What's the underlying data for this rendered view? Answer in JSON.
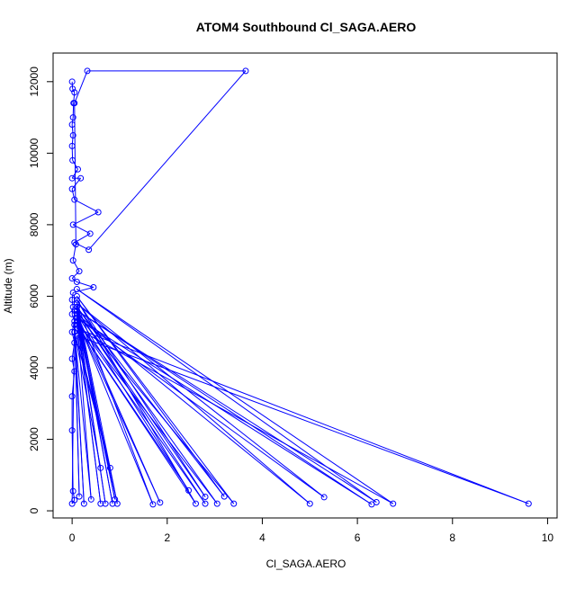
{
  "chart_data": {
    "type": "line",
    "title": "ATOM4 Southbound Cl_SAGA.AERO",
    "xlabel": "Cl_SAGA.AERO",
    "ylabel": "Altitude (m)",
    "xlim": [
      -0.4,
      10.2
    ],
    "ylim": [
      -200,
      12800
    ],
    "x_ticks": [
      0,
      2,
      4,
      6,
      8,
      10
    ],
    "y_ticks": [
      0,
      2000,
      4000,
      6000,
      8000,
      10000,
      12000
    ],
    "grid": false,
    "line_color": "#0000ff",
    "marker": "open-circle",
    "series": [
      {
        "points": [
          [
            0.0,
            12000
          ],
          [
            0.01,
            11800
          ],
          [
            0.05,
            11700
          ],
          [
            0.03,
            11400
          ],
          [
            0.02,
            11000
          ],
          [
            0.0,
            10800
          ],
          [
            0.02,
            10500
          ],
          [
            0.0,
            10200
          ],
          [
            0.01,
            9800
          ],
          [
            0.12,
            9550
          ],
          [
            0.0,
            9300
          ],
          [
            0.18,
            9300
          ],
          [
            0.0,
            9000
          ],
          [
            0.05,
            8700
          ],
          [
            0.55,
            8350
          ],
          [
            0.02,
            8000
          ],
          [
            0.38,
            7750
          ],
          [
            0.05,
            7500
          ],
          [
            0.35,
            7300
          ],
          [
            3.65,
            12300
          ],
          [
            0.32,
            12300
          ],
          [
            0.05,
            11400
          ],
          [
            0.08,
            7450
          ],
          [
            0.02,
            7000
          ],
          [
            0.15,
            6700
          ],
          [
            0.0,
            6500
          ],
          [
            0.1,
            6400
          ],
          [
            0.45,
            6250
          ],
          [
            0.02,
            6100
          ],
          [
            0.0,
            5900
          ],
          [
            0.02,
            5700
          ],
          [
            0.0,
            5500
          ],
          [
            0.05,
            5300
          ],
          [
            0.0,
            5000
          ],
          [
            0.05,
            4700
          ],
          [
            0.0,
            4250
          ],
          [
            0.05,
            3900
          ],
          [
            0.0,
            3200
          ],
          [
            0.0,
            2250
          ],
          [
            0.02,
            550
          ],
          [
            0.05,
            300
          ],
          [
            0.0,
            200
          ],
          [
            0.05,
            5600
          ],
          [
            0.15,
            400
          ],
          [
            0.05,
            5200
          ],
          [
            0.25,
            200
          ],
          [
            0.05,
            5000
          ],
          [
            0.4,
            320
          ],
          [
            0.1,
            5400
          ],
          [
            0.6,
            200
          ],
          [
            0.1,
            5500
          ],
          [
            0.7,
            200
          ],
          [
            0.1,
            5600
          ],
          [
            0.85,
            200
          ],
          [
            0.1,
            5700
          ],
          [
            0.9,
            320
          ],
          [
            0.1,
            5400
          ],
          [
            0.95,
            200
          ],
          [
            0.1,
            5800
          ],
          [
            1.7,
            180
          ],
          [
            0.12,
            5300
          ],
          [
            1.85,
            230
          ],
          [
            0.1,
            5500
          ],
          [
            2.45,
            570
          ],
          [
            0.1,
            5200
          ],
          [
            2.6,
            200
          ],
          [
            0.1,
            5900
          ],
          [
            2.8,
            390
          ],
          [
            0.1,
            5600
          ],
          [
            2.8,
            200
          ],
          [
            0.1,
            5300
          ],
          [
            3.05,
            200
          ],
          [
            0.1,
            5700
          ],
          [
            3.2,
            400
          ],
          [
            0.1,
            6000
          ],
          [
            3.4,
            200
          ],
          [
            0.1,
            5500
          ],
          [
            5.0,
            200
          ],
          [
            0.1,
            5800
          ],
          [
            5.3,
            380
          ],
          [
            0.1,
            5400
          ],
          [
            6.3,
            180
          ],
          [
            0.1,
            5600
          ],
          [
            6.4,
            240
          ],
          [
            0.1,
            6200
          ],
          [
            6.75,
            200
          ],
          [
            0.1,
            5100
          ],
          [
            9.6,
            200
          ],
          [
            0.1,
            4900
          ],
          [
            0.8,
            1200
          ],
          [
            0.05,
            5000
          ],
          [
            0.6,
            1200
          ]
        ]
      }
    ]
  }
}
